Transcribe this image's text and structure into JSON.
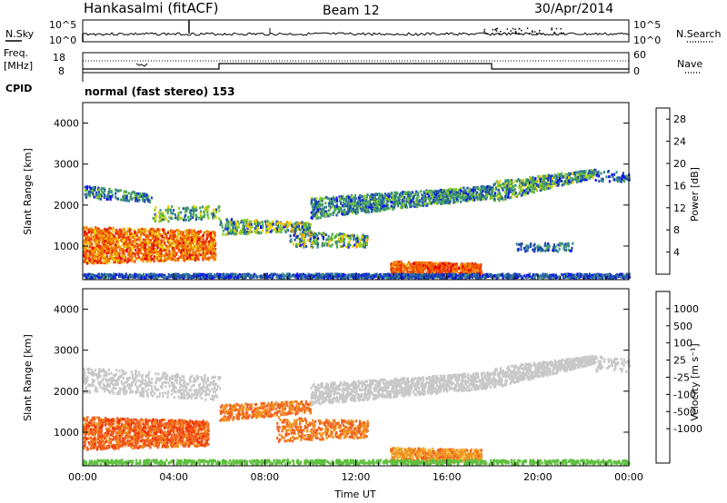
{
  "header": {
    "station": "Hankasalmi (fitACF)",
    "beam": "Beam 12",
    "date": "30/Apr/2014"
  },
  "strips": {
    "nsky_label": "N.Sky",
    "nsearch_label": "N.Search",
    "nsky_ticks": [
      "10^5",
      "10^0"
    ],
    "nsky_right_ticks": [
      "10^5",
      "10^0"
    ],
    "freq_label_top": "Freq.",
    "freq_label_bottom": "[MHz]",
    "freq_ticks": [
      "18",
      "8"
    ],
    "nave_label": "Nave",
    "nave_ticks": [
      "60",
      "0"
    ],
    "cpid_label": "CPID",
    "cpid_text": "normal (fast stereo) 153"
  },
  "colors": {
    "power": [
      "#1010f0",
      "#2050a8",
      "#3a8a8a",
      "#4aaa50",
      "#8ccf20",
      "#e8d000",
      "#f0a000",
      "#f07000",
      "#f03a00",
      "#e00000"
    ],
    "velocity": [
      "#1030d0",
      "#205aa0",
      "#3a8a6a",
      "#60c040",
      "#c8c8c8",
      "#f0c040",
      "#f09020",
      "#f06020",
      "#f03000",
      "#d00000"
    ]
  },
  "chart_data": [
    {
      "type": "heatmap",
      "name": "power",
      "ylabel": "Slant Range [km]",
      "xlabel": "",
      "ylim": [
        180,
        4500
      ],
      "xlim": [
        0,
        24
      ],
      "yticks": [
        "1000",
        "2000",
        "3000",
        "4000"
      ],
      "colorbar_label": "Power [dB]",
      "colorbar_ticks": [
        "4",
        "8",
        "12",
        "16",
        "20",
        "24",
        "28"
      ],
      "colorbar_range": [
        0,
        30
      ]
    },
    {
      "type": "heatmap",
      "name": "velocity",
      "ylabel": "Slant Range [km]",
      "xlabel": "Time UT",
      "ylim": [
        180,
        4500
      ],
      "xlim": [
        0,
        24
      ],
      "yticks": [
        "1000",
        "2000",
        "3000",
        "4000"
      ],
      "xticks": [
        "00:00",
        "04:00",
        "08:00",
        "12:00",
        "16:00",
        "20:00",
        "00:00"
      ],
      "colorbar_label": "Velocity [m s⁻¹]",
      "colorbar_ticks": [
        "1000",
        "500",
        "100",
        "25",
        "-25",
        "-100",
        "-500",
        "-1000"
      ]
    }
  ]
}
